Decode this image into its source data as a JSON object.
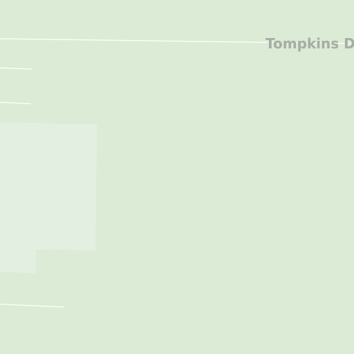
{
  "map": {
    "streets": [
      {
        "name": "Tompkins Dr"
      }
    ],
    "colors": {
      "land": "#dcebd5",
      "light_area": "#e3f0e1",
      "path": "#ffffff",
      "label": "#a6ada6"
    }
  }
}
